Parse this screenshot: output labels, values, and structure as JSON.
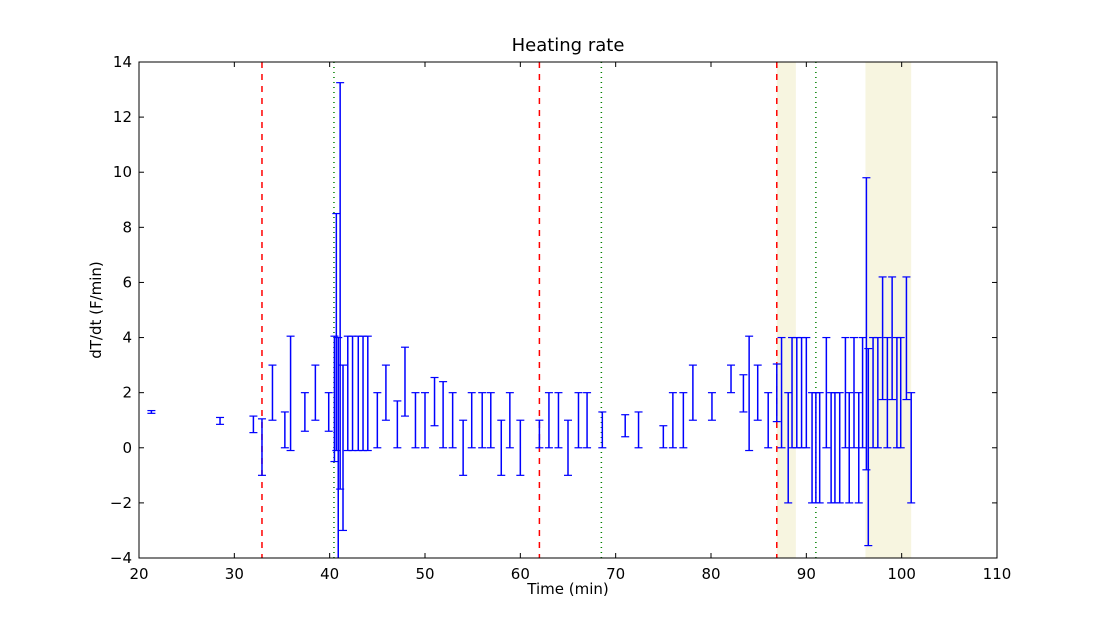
{
  "chart_data": {
    "type": "errorbar",
    "title": "Heating rate",
    "xlabel": "Time (min)",
    "ylabel": "dT/dt (F/min)",
    "xlim": [
      20,
      110
    ],
    "ylim": [
      -4,
      14
    ],
    "xticks": [
      20,
      30,
      40,
      50,
      60,
      70,
      80,
      90,
      100,
      110
    ],
    "yticks": [
      -4,
      -2,
      0,
      2,
      4,
      6,
      8,
      10,
      12,
      14
    ],
    "grid": false,
    "series_color": "#0000ff",
    "x": [
      21.3,
      28.5,
      32.0,
      32.9,
      34.0,
      35.3,
      35.9,
      37.4,
      38.5,
      39.9,
      40.5,
      40.7,
      40.9,
      41.1,
      41.4,
      41.9,
      42.4,
      43.0,
      43.5,
      44.0,
      45.0,
      45.9,
      47.1,
      47.9,
      49.0,
      50.0,
      51.0,
      51.9,
      52.9,
      54.0,
      54.9,
      56.0,
      56.9,
      58.0,
      58.9,
      60.0,
      62.0,
      63.0,
      64.0,
      65.0,
      66.1,
      67.0,
      68.6,
      71.0,
      72.4,
      75.0,
      76.0,
      77.1,
      78.1,
      80.1,
      82.1,
      83.4,
      84.0,
      84.9,
      86.0,
      86.9,
      87.4,
      88.1,
      88.5,
      89.0,
      89.5,
      90.0,
      90.6,
      91.0,
      91.4,
      92.1,
      92.6,
      93.0,
      93.5,
      94.1,
      94.5,
      95.0,
      95.5,
      95.9,
      96.3,
      96.5,
      97.0,
      97.5,
      98.0,
      98.5,
      99.0,
      99.5,
      99.9,
      100.5,
      101.0
    ],
    "lower": [
      1.25,
      0.85,
      0.55,
      -1,
      1,
      0,
      -0.1,
      0.6,
      1,
      0.6,
      -0.5,
      -0.1,
      -4,
      -1.5,
      -3,
      -0.1,
      -0.1,
      -0.1,
      -0.1,
      -0.1,
      0,
      1,
      0,
      1.15,
      0,
      0,
      0.8,
      0,
      0,
      -1,
      0,
      0,
      0,
      -1,
      0,
      -1,
      0,
      0,
      0,
      -1,
      0,
      0,
      0,
      0.4,
      0,
      0,
      0,
      0,
      1,
      1,
      2,
      1.3,
      -0.1,
      1,
      0,
      0.95,
      0,
      -2,
      0,
      0,
      0,
      0,
      -2,
      -2,
      -2,
      0,
      -2,
      -2,
      -2,
      0,
      -2,
      0,
      -2,
      0,
      -0.8,
      -3.55,
      0,
      0,
      1.75,
      0,
      1.75,
      0,
      0,
      1.75,
      -2
    ],
    "upper": [
      1.35,
      1.1,
      1.15,
      1.05,
      3,
      1.3,
      4.05,
      2,
      3,
      2,
      4.05,
      8.5,
      4,
      13.25,
      3,
      4.05,
      4.05,
      4.05,
      4.05,
      4.05,
      2,
      3,
      1.7,
      3.65,
      2,
      2,
      2.55,
      2.4,
      2,
      1,
      2,
      2,
      2,
      1,
      2,
      1,
      1,
      2,
      2,
      1,
      2,
      2,
      1.3,
      1.2,
      1.3,
      0.8,
      2,
      2,
      3,
      2,
      3,
      2.65,
      4.05,
      3,
      2,
      3.04,
      4,
      2,
      4,
      4,
      4,
      4,
      2,
      2,
      2,
      4,
      2,
      2,
      2,
      4,
      2,
      4,
      2,
      4,
      9.8,
      3.6,
      4,
      4,
      6.2,
      4,
      6.2,
      4,
      4,
      6.2,
      2
    ],
    "vlines_dashed_red": [
      32.9,
      62.0,
      86.9
    ],
    "vlines_dotted_green": [
      40.45,
      68.5,
      91.0
    ],
    "shaded_spans": [
      [
        86.9,
        88.9
      ],
      [
        96.2,
        101.0
      ]
    ],
    "colors": {
      "errorbar": "#0000ff",
      "dashed": "#ff0000",
      "dotted": "#008000",
      "span": "#f7f5e0"
    }
  }
}
